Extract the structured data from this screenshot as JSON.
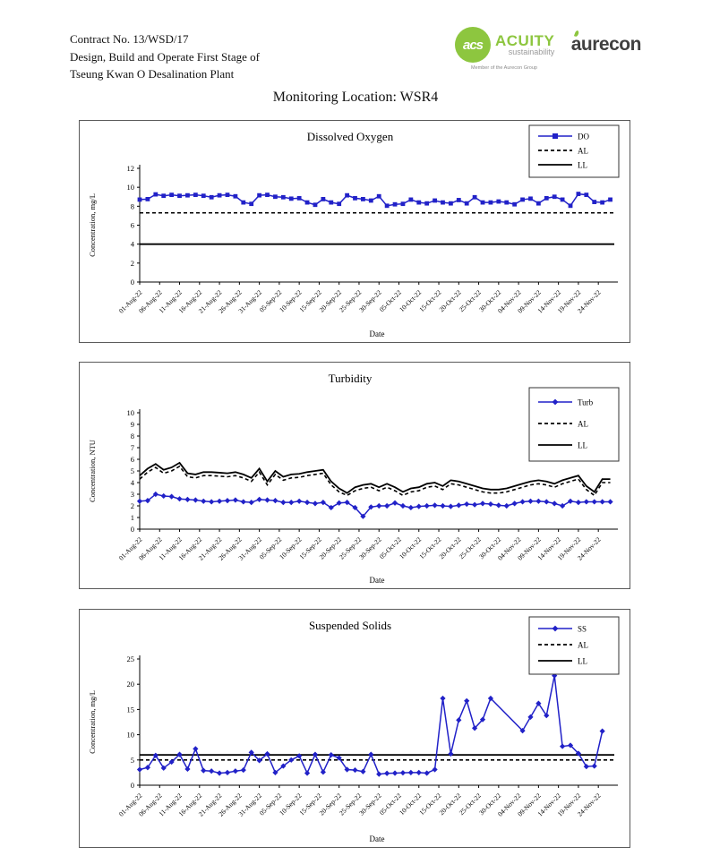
{
  "header": {
    "line1": "Contract No. 13/WSD/17",
    "line2": "Design, Build and Operate First Stage of",
    "line3": "Tseung Kwan O Desalination Plant"
  },
  "logos": {
    "acuity_monogram": "acs",
    "acuity_name": "ACUITY",
    "acuity_sub": "sustainability",
    "acuity_member": "Member of the Aurecon Group",
    "aurecon_name": "aurecon",
    "acuity_green": "#8dc63f",
    "aurecon_gray": "#404040"
  },
  "page_title": "Monitoring Location: WSR4",
  "colors": {
    "series_blue": "#2121c8",
    "limit_black": "#000000"
  },
  "x_axis": {
    "label": "Date",
    "tick_day_step": 5,
    "day_max": 119,
    "tick_labels": [
      "01-Aug-22",
      "06-Aug-22",
      "11-Aug-22",
      "16-Aug-22",
      "21-Aug-22",
      "26-Aug-22",
      "31-Aug-22",
      "05-Sep-22",
      "10-Sep-22",
      "15-Sep-22",
      "20-Sep-22",
      "25-Sep-22",
      "30-Sep-22",
      "05-Oct-22",
      "10-Oct-22",
      "15-Oct-22",
      "20-Oct-22",
      "25-Oct-22",
      "30-Oct-22",
      "04-Nov-22",
      "09-Nov-22",
      "14-Nov-22",
      "19-Nov-22",
      "24-Nov-22"
    ]
  },
  "chart_data": [
    {
      "type": "line",
      "title": "Dissolved Oxygen",
      "ylabel": "Concentration, mg/L",
      "ylim": [
        0,
        12
      ],
      "ystep": 2,
      "marker": "square",
      "legend": [
        {
          "label": "DO",
          "kind": "series"
        },
        {
          "label": "AL",
          "kind": "dashed"
        },
        {
          "label": "LL",
          "kind": "solid"
        }
      ],
      "al": 7.3,
      "ll": 4.0,
      "series": {
        "name": "DO",
        "day_step": 2,
        "values": [
          8.7,
          8.75,
          9.25,
          9.1,
          9.2,
          9.1,
          9.15,
          9.2,
          9.1,
          8.95,
          9.15,
          9.2,
          9.05,
          8.4,
          8.25,
          9.15,
          9.2,
          9.0,
          8.95,
          8.8,
          8.85,
          8.4,
          8.15,
          8.75,
          8.4,
          8.25,
          9.15,
          8.85,
          8.75,
          8.6,
          9.05,
          8.05,
          8.2,
          8.25,
          8.7,
          8.4,
          8.3,
          8.6,
          8.4,
          8.3,
          8.65,
          8.3,
          8.95,
          8.4,
          8.4,
          8.5,
          8.4,
          8.2,
          8.7,
          8.8,
          8.3,
          8.85,
          9.0,
          8.7,
          8.05,
          9.3,
          9.2,
          8.45,
          8.4,
          8.7
        ]
      }
    },
    {
      "type": "line",
      "title": "Turbidity",
      "ylabel": "Concentration, NTU",
      "ylim": [
        0,
        10
      ],
      "ystep": 1,
      "marker": "diamond",
      "legend": [
        {
          "label": "Turb",
          "kind": "series"
        },
        {
          "label": "AL",
          "kind": "dashed"
        },
        {
          "label": "LL",
          "kind": "solid"
        }
      ],
      "al_values": [
        4.3,
        4.9,
        5.3,
        4.8,
        5.0,
        5.4,
        4.5,
        4.4,
        4.6,
        4.6,
        4.55,
        4.5,
        4.6,
        4.4,
        4.1,
        4.9,
        3.8,
        4.7,
        4.2,
        4.4,
        4.45,
        4.6,
        4.7,
        4.8,
        3.8,
        3.2,
        2.9,
        3.3,
        3.5,
        3.6,
        3.3,
        3.6,
        3.3,
        2.9,
        3.2,
        3.3,
        3.6,
        3.7,
        3.4,
        3.9,
        3.8,
        3.6,
        3.4,
        3.2,
        3.1,
        3.1,
        3.2,
        3.4,
        3.6,
        3.8,
        3.9,
        3.8,
        3.6,
        3.9,
        4.1,
        4.3,
        3.4,
        2.9,
        4.0,
        4.0
      ],
      "ll_values": [
        4.6,
        5.2,
        5.6,
        5.1,
        5.3,
        5.7,
        4.8,
        4.7,
        4.9,
        4.9,
        4.85,
        4.8,
        4.9,
        4.7,
        4.4,
        5.2,
        4.1,
        5.0,
        4.5,
        4.7,
        4.75,
        4.9,
        5.0,
        5.1,
        4.1,
        3.5,
        3.1,
        3.6,
        3.8,
        3.9,
        3.6,
        3.9,
        3.6,
        3.2,
        3.5,
        3.6,
        3.9,
        4.0,
        3.7,
        4.2,
        4.1,
        3.9,
        3.7,
        3.5,
        3.4,
        3.4,
        3.5,
        3.7,
        3.9,
        4.1,
        4.2,
        4.1,
        3.9,
        4.2,
        4.4,
        4.6,
        3.7,
        3.2,
        4.3,
        4.3
      ],
      "limit_day_step": 2,
      "series": {
        "name": "Turb",
        "day_step": 2,
        "values": [
          2.4,
          2.45,
          3.0,
          2.85,
          2.8,
          2.6,
          2.55,
          2.5,
          2.4,
          2.35,
          2.4,
          2.45,
          2.5,
          2.35,
          2.3,
          2.55,
          2.5,
          2.45,
          2.3,
          2.3,
          2.4,
          2.3,
          2.2,
          2.3,
          1.85,
          2.25,
          2.3,
          1.85,
          1.1,
          1.9,
          2.0,
          2.0,
          2.25,
          2.0,
          1.85,
          1.95,
          2.0,
          2.05,
          2.0,
          1.95,
          2.05,
          2.15,
          2.1,
          2.2,
          2.15,
          2.05,
          2.0,
          2.2,
          2.35,
          2.4,
          2.4,
          2.35,
          2.2,
          2.0,
          2.4,
          2.3,
          2.35,
          2.35,
          2.35,
          2.35
        ]
      }
    },
    {
      "type": "line",
      "title": "Suspended Solids",
      "ylabel": "Concentration, mg/L",
      "ylim": [
        0,
        25
      ],
      "ystep": 5,
      "marker": "diamond",
      "legend": [
        {
          "label": "SS",
          "kind": "series"
        },
        {
          "label": "AL",
          "kind": "dashed"
        },
        {
          "label": "LL",
          "kind": "solid"
        }
      ],
      "al": 5.0,
      "ll": 6.0,
      "series": {
        "name": "SS",
        "days": [
          0,
          2,
          4,
          6,
          8,
          10,
          12,
          14,
          16,
          18,
          20,
          22,
          24,
          26,
          28,
          30,
          32,
          34,
          36,
          38,
          40,
          42,
          44,
          46,
          48,
          50,
          52,
          54,
          56,
          58,
          60,
          62,
          64,
          66,
          68,
          70,
          72,
          74,
          76,
          78,
          80,
          82,
          84,
          86,
          88,
          96,
          98,
          100,
          102,
          104,
          106,
          108,
          110,
          112,
          114,
          116
        ],
        "values": [
          3.1,
          3.5,
          5.9,
          3.4,
          4.6,
          6.1,
          3.2,
          7.2,
          2.9,
          2.8,
          2.4,
          2.5,
          2.8,
          3.0,
          6.5,
          4.9,
          6.2,
          2.5,
          3.8,
          5.0,
          5.8,
          2.4,
          6.1,
          2.6,
          6.0,
          5.4,
          3.1,
          3.0,
          2.7,
          6.1,
          2.2,
          2.35,
          2.4,
          2.45,
          2.5,
          2.5,
          2.4,
          3.1,
          17.2,
          6.2,
          12.9,
          16.7,
          11.3,
          13.0,
          17.2,
          10.8,
          13.5,
          16.2,
          13.8,
          21.7,
          7.7,
          7.9,
          6.3,
          3.7,
          3.8,
          10.7
        ]
      }
    }
  ]
}
